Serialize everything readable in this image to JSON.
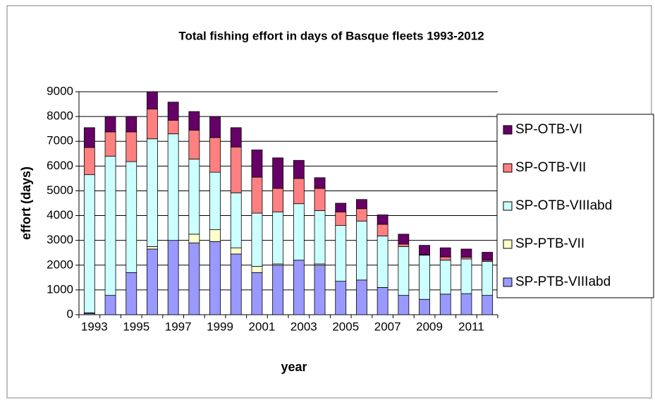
{
  "chart_data": {
    "type": "stacked_bar",
    "title": "Total fishing effort in days of Basque fleets  1993-2012",
    "x_label": "year",
    "y_label": "effort (days)",
    "categories": [
      "1993",
      null,
      "1995",
      null,
      "1997",
      null,
      "1999",
      null,
      "2001",
      null,
      "2003",
      null,
      "2005",
      null,
      "2007",
      null,
      "2009",
      null,
      "2011",
      null
    ],
    "series": [
      {
        "name": "SP-PTB-VIIIabd",
        "color": "#9999ff",
        "values": [
          50,
          780,
          1700,
          2650,
          3000,
          2900,
          2950,
          2450,
          1700,
          2000,
          2200,
          2000,
          1350,
          1400,
          1100,
          780,
          620,
          830,
          850,
          780
        ]
      },
      {
        "name": "SP-PTB-VII",
        "color": "#ffffcc",
        "values": [
          30,
          0,
          0,
          100,
          0,
          350,
          480,
          250,
          250,
          50,
          0,
          50,
          0,
          0,
          0,
          0,
          0,
          0,
          0,
          0
        ]
      },
      {
        "name": "SP-OTB-VIIIabd",
        "color": "#ccffff",
        "values": [
          5570,
          5620,
          4480,
          4350,
          4300,
          3030,
          2320,
          2220,
          2150,
          2100,
          2280,
          2150,
          2250,
          2380,
          2080,
          1970,
          1780,
          1370,
          1400,
          1370
        ]
      },
      {
        "name": "SP-OTB-VII",
        "color": "#ff8080",
        "values": [
          1100,
          980,
          1200,
          1200,
          550,
          1170,
          1400,
          1850,
          1450,
          950,
          1020,
          900,
          550,
          500,
          470,
          100,
          30,
          130,
          70,
          50
        ]
      },
      {
        "name": "SP-OTB-VI",
        "color": "#660066",
        "values": [
          800,
          620,
          620,
          700,
          730,
          750,
          850,
          780,
          1100,
          1230,
          730,
          430,
          350,
          370,
          380,
          400,
          370,
          370,
          330,
          320
        ]
      }
    ],
    "ylim": [
      0,
      9000
    ],
    "yticks": [
      0,
      1000,
      2000,
      3000,
      4000,
      5000,
      6000,
      7000,
      8000,
      9000
    ],
    "grid": true,
    "legend": "right"
  }
}
